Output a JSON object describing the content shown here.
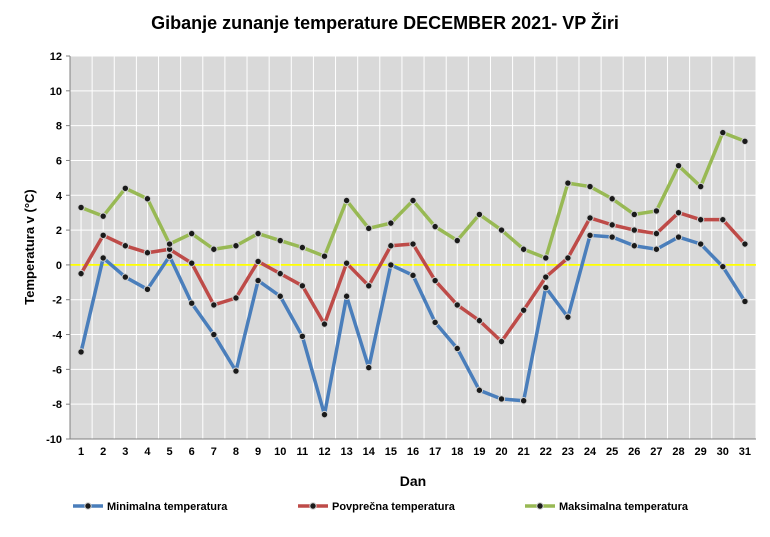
{
  "chart_data": {
    "type": "line",
    "title": "Gibanje zunanje temperature DECEMBER 2021- VP Žiri",
    "xlabel": "Dan",
    "ylabel": "Temperatura v (°C)",
    "ylim": [
      -10,
      12
    ],
    "y_ticks": [
      -10,
      -8,
      -6,
      -4,
      -2,
      0,
      2,
      4,
      6,
      8,
      10,
      12
    ],
    "grid": true,
    "legend_position": "bottom",
    "categories": [
      1,
      2,
      3,
      4,
      5,
      6,
      7,
      8,
      9,
      10,
      11,
      12,
      13,
      14,
      15,
      16,
      17,
      18,
      19,
      20,
      21,
      22,
      23,
      24,
      25,
      26,
      27,
      28,
      29,
      30,
      31
    ],
    "reference_line": {
      "value": 0,
      "color": "#ffff00"
    },
    "series": [
      {
        "name": "Minimalna temperatura",
        "color": "#4a7ebb",
        "values": [
          -5.0,
          0.4,
          -0.7,
          -1.4,
          0.5,
          -2.2,
          -4.0,
          -6.1,
          -0.9,
          -1.8,
          -4.1,
          -8.6,
          -1.8,
          -5.9,
          0.0,
          -0.6,
          -3.3,
          -4.8,
          -7.2,
          -7.7,
          -7.8,
          -1.3,
          -3.0,
          1.7,
          1.6,
          1.1,
          0.9,
          1.6,
          1.2,
          -0.1,
          -2.1
        ]
      },
      {
        "name": "Povprečna temperatura",
        "color": "#be4b48",
        "values": [
          -0.5,
          1.7,
          1.1,
          0.7,
          0.9,
          0.1,
          -2.3,
          -1.9,
          0.2,
          -0.5,
          -1.2,
          -3.4,
          0.1,
          -1.2,
          1.1,
          1.2,
          -0.9,
          -2.3,
          -3.2,
          -4.4,
          -2.6,
          -0.7,
          0.4,
          2.7,
          2.3,
          2.0,
          1.8,
          3.0,
          2.6,
          2.6,
          1.2
        ]
      },
      {
        "name": "Maksimalna temperatura",
        "color": "#98b954",
        "values": [
          3.3,
          2.8,
          4.4,
          3.8,
          1.2,
          1.8,
          0.9,
          1.1,
          1.8,
          1.4,
          1.0,
          0.5,
          3.7,
          2.1,
          2.4,
          3.7,
          2.2,
          1.4,
          2.9,
          2.0,
          0.9,
          0.4,
          4.7,
          4.5,
          3.8,
          2.9,
          3.1,
          5.7,
          4.5,
          7.6,
          7.1
        ]
      }
    ]
  }
}
